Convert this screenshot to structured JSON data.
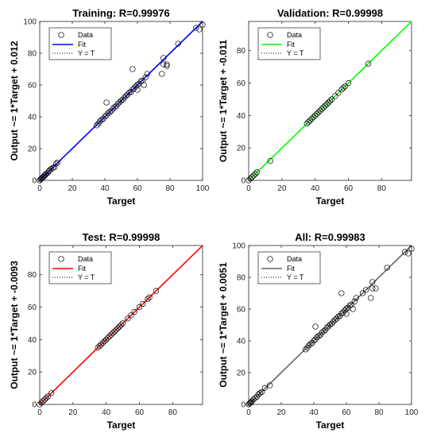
{
  "chart_data": [
    {
      "type": "scatter",
      "title": "Training: R=0.99976",
      "xlabel": "Target",
      "ylabel": "Output ~= 1*Target + 0.012",
      "xlim": [
        0,
        100
      ],
      "ylim": [
        0,
        100
      ],
      "xticks": [
        0,
        20,
        40,
        60,
        80,
        100
      ],
      "yticks": [
        0,
        20,
        40,
        60,
        80,
        100
      ],
      "fit_color": "#0000ff",
      "fit": {
        "slope": 1,
        "intercept": 0.012
      },
      "legend": [
        "Data",
        "Fit",
        "Y = T"
      ],
      "legend_placement": "top-left",
      "points": [
        [
          0,
          0
        ],
        [
          0.5,
          0.6
        ],
        [
          1,
          1
        ],
        [
          1.5,
          1.4
        ],
        [
          2,
          2.1
        ],
        [
          2.5,
          2.4
        ],
        [
          3,
          3.2
        ],
        [
          3.5,
          3.4
        ],
        [
          4,
          4.1
        ],
        [
          5,
          4.8
        ],
        [
          5.5,
          5.7
        ],
        [
          6,
          6.4
        ],
        [
          7,
          7.1
        ],
        [
          8,
          7.8
        ],
        [
          9,
          8.3
        ],
        [
          10,
          10.4
        ],
        [
          11,
          11.2
        ],
        [
          35,
          34.6
        ],
        [
          36,
          35.8
        ],
        [
          37,
          37.2
        ],
        [
          38,
          38.1
        ],
        [
          39,
          38.6
        ],
        [
          40,
          40.2
        ],
        [
          41,
          40.9
        ],
        [
          42,
          42.3
        ],
        [
          43,
          43.1
        ],
        [
          44,
          43.7
        ],
        [
          45,
          45.2
        ],
        [
          46,
          46.1
        ],
        [
          47,
          46.8
        ],
        [
          48,
          48.3
        ],
        [
          49,
          49.1
        ],
        [
          50,
          50.2
        ],
        [
          51,
          50.8
        ],
        [
          52,
          52.1
        ],
        [
          53,
          53.2
        ],
        [
          54,
          54
        ],
        [
          55,
          55.3
        ],
        [
          56,
          55.6
        ],
        [
          57,
          57.2
        ],
        [
          58,
          57.9
        ],
        [
          59,
          59.1
        ],
        [
          60,
          60.3
        ],
        [
          61,
          60.8
        ],
        [
          62,
          62.2
        ],
        [
          63,
          62.8
        ],
        [
          65,
          64.8
        ],
        [
          66,
          67
        ],
        [
          41,
          49
        ],
        [
          57,
          70
        ],
        [
          60,
          57
        ],
        [
          64,
          60
        ],
        [
          75,
          67
        ],
        [
          76,
          73
        ],
        [
          76,
          77
        ],
        [
          78,
          73
        ],
        [
          78,
          72
        ],
        [
          85,
          86
        ],
        [
          96,
          96
        ],
        [
          98,
          95
        ],
        [
          100,
          98
        ]
      ]
    },
    {
      "type": "scatter",
      "title": "Validation: R=0.99998",
      "xlabel": "Target",
      "ylabel": "Output ~= 1*Target + -0.011",
      "xlim": [
        0,
        98
      ],
      "ylim": [
        0,
        98
      ],
      "xticks": [
        0,
        20,
        40,
        60,
        80
      ],
      "yticks": [
        0,
        20,
        40,
        60,
        80
      ],
      "fit_color": "#00ff00",
      "fit": {
        "slope": 1,
        "intercept": -0.011
      },
      "legend": [
        "Data",
        "Fit",
        "Y = T"
      ],
      "legend_placement": "top-left",
      "points": [
        [
          0,
          0
        ],
        [
          1,
          1
        ],
        [
          2,
          2
        ],
        [
          3,
          3
        ],
        [
          4,
          4
        ],
        [
          5,
          5
        ],
        [
          13,
          12
        ],
        [
          35,
          35
        ],
        [
          36,
          36
        ],
        [
          37,
          37
        ],
        [
          38,
          38
        ],
        [
          39,
          39
        ],
        [
          40,
          40
        ],
        [
          41,
          41
        ],
        [
          42,
          42
        ],
        [
          43,
          43
        ],
        [
          44,
          44
        ],
        [
          45,
          45
        ],
        [
          46,
          46
        ],
        [
          47,
          47
        ],
        [
          48,
          48
        ],
        [
          49,
          49
        ],
        [
          50,
          50
        ],
        [
          52,
          52
        ],
        [
          54,
          54
        ],
        [
          56,
          56
        ],
        [
          57,
          57
        ],
        [
          58,
          58
        ],
        [
          60,
          60
        ],
        [
          72,
          72
        ]
      ]
    },
    {
      "type": "scatter",
      "title": "Test: R=0.99998",
      "xlabel": "Target",
      "ylabel": "Output ~= 1*Target + -0.0093",
      "xlim": [
        0,
        98
      ],
      "ylim": [
        0,
        98
      ],
      "xticks": [
        0,
        20,
        40,
        60,
        80
      ],
      "yticks": [
        0,
        20,
        40,
        60,
        80
      ],
      "fit_color": "#ff0000",
      "fit": {
        "slope": 1,
        "intercept": -0.0093
      },
      "legend": [
        "Data",
        "Fit",
        "Y = T"
      ],
      "legend_placement": "top-left",
      "points": [
        [
          0,
          0
        ],
        [
          1,
          1
        ],
        [
          2,
          2
        ],
        [
          3,
          3
        ],
        [
          4,
          4
        ],
        [
          5,
          5
        ],
        [
          7,
          7
        ],
        [
          35,
          35
        ],
        [
          36,
          36
        ],
        [
          37,
          37
        ],
        [
          38,
          38
        ],
        [
          39,
          39
        ],
        [
          40,
          40
        ],
        [
          41,
          41
        ],
        [
          42,
          42
        ],
        [
          43,
          43
        ],
        [
          44,
          44
        ],
        [
          45,
          45
        ],
        [
          46,
          46
        ],
        [
          47,
          47
        ],
        [
          48,
          48
        ],
        [
          49,
          49
        ],
        [
          50,
          50
        ],
        [
          53,
          53
        ],
        [
          55,
          55
        ],
        [
          57,
          57
        ],
        [
          60,
          60
        ],
        [
          62,
          62
        ],
        [
          65,
          65
        ],
        [
          66,
          66
        ],
        [
          70,
          70
        ]
      ]
    },
    {
      "type": "scatter",
      "title": "All: R=0.99983",
      "xlabel": "Target",
      "ylabel": "Output ~= 1*Target + 0.0051",
      "xlim": [
        0,
        100
      ],
      "ylim": [
        0,
        100
      ],
      "xticks": [
        0,
        20,
        40,
        60,
        80,
        100
      ],
      "yticks": [
        0,
        20,
        40,
        60,
        80,
        100
      ],
      "fit_color": "#666666",
      "fit": {
        "slope": 1,
        "intercept": 0.0051
      },
      "legend": [
        "Data",
        "Fit",
        "Y = T"
      ],
      "legend_placement": "top-left",
      "points": [
        [
          0,
          0
        ],
        [
          0.5,
          0.6
        ],
        [
          1,
          1
        ],
        [
          1.5,
          1.4
        ],
        [
          2,
          2.1
        ],
        [
          3,
          3.2
        ],
        [
          4,
          4.1
        ],
        [
          5,
          4.8
        ],
        [
          6,
          6.4
        ],
        [
          7,
          7.1
        ],
        [
          8,
          7.8
        ],
        [
          10,
          10.4
        ],
        [
          13,
          12
        ],
        [
          35,
          34.6
        ],
        [
          36,
          35.8
        ],
        [
          37,
          37.2
        ],
        [
          38,
          38.1
        ],
        [
          39,
          38.6
        ],
        [
          40,
          40.2
        ],
        [
          41,
          40.9
        ],
        [
          42,
          42.3
        ],
        [
          43,
          43.1
        ],
        [
          44,
          43.7
        ],
        [
          45,
          45.2
        ],
        [
          46,
          46.1
        ],
        [
          47,
          46.8
        ],
        [
          48,
          48.3
        ],
        [
          49,
          49.1
        ],
        [
          50,
          50.2
        ],
        [
          51,
          50.8
        ],
        [
          52,
          52.1
        ],
        [
          53,
          53.2
        ],
        [
          54,
          54
        ],
        [
          55,
          55.3
        ],
        [
          56,
          55.6
        ],
        [
          57,
          57.2
        ],
        [
          58,
          57.9
        ],
        [
          59,
          59.1
        ],
        [
          60,
          60.3
        ],
        [
          61,
          60.8
        ],
        [
          62,
          62.2
        ],
        [
          63,
          62.8
        ],
        [
          65,
          64.8
        ],
        [
          66,
          67
        ],
        [
          41,
          49
        ],
        [
          57,
          70
        ],
        [
          60,
          57
        ],
        [
          64,
          60
        ],
        [
          70,
          70
        ],
        [
          72,
          72
        ],
        [
          75,
          67
        ],
        [
          76,
          73
        ],
        [
          76,
          77
        ],
        [
          78,
          73
        ],
        [
          85,
          86
        ],
        [
          96,
          96
        ],
        [
          98,
          95
        ],
        [
          100,
          98
        ]
      ]
    }
  ]
}
